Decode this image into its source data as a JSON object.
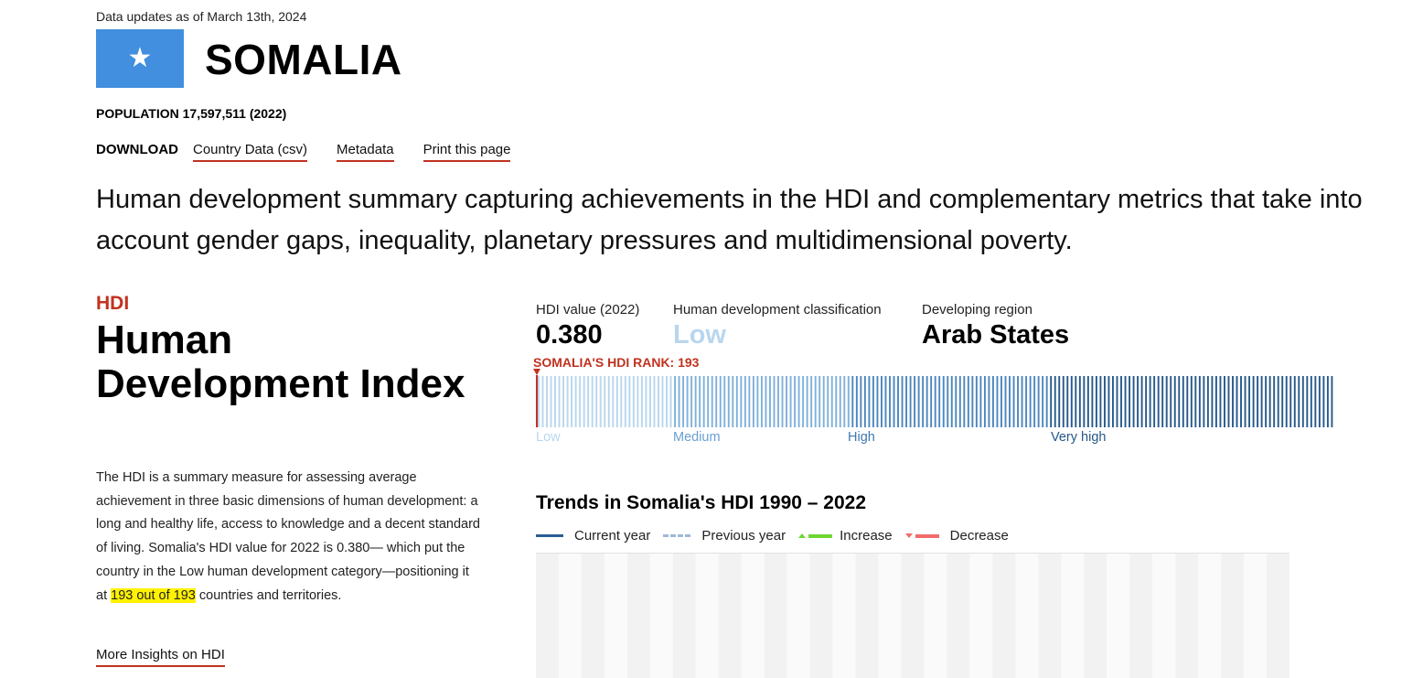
{
  "header": {
    "updated": "Data updates as of March 13th, 2024",
    "country": "SOMALIA",
    "population": "POPULATION 17,597,511 (2022)",
    "flag_icon": "star-icon",
    "flag_color": "#418fde"
  },
  "download": {
    "label": "DOWNLOAD",
    "links": [
      "Country Data (csv)",
      "Metadata",
      "Print this page"
    ]
  },
  "summary": "Human development summary capturing achievements in the HDI and complementary metrics that take into account gender gaps, inequality, planetary pressures and multidimensional poverty.",
  "hdi": {
    "tag": "HDI",
    "title": "Human Development Index",
    "desc_before": "The HDI is a summary measure for assessing average achievement in three basic dimensions of human development: a long and healthy life, access to knowledge and a decent standard of living. Somalia's HDI value for 2022 is 0.380— which put the country in the Low human development category—positioning it at ",
    "desc_highlight": "193 out of 193",
    "desc_after": " countries and territories.",
    "insights_link": "More Insights on HDI"
  },
  "metrics": {
    "value_label": "HDI value (2022)",
    "value": "0.380",
    "class_label": "Human development classification",
    "class_value": "Low",
    "region_label": "Developing region",
    "region_value": "Arab States"
  },
  "rank": {
    "label": "SOMALIA'S HDI RANK: 193",
    "rank": 193,
    "total_countries": 193,
    "categories": [
      "Low",
      "Medium",
      "High",
      "Very high"
    ],
    "category_colors": [
      "#b8d6ee",
      "#7fb0da",
      "#4d86bd",
      "#27598a"
    ]
  },
  "trend": {
    "title": "Trends in Somalia's HDI 1990 – 2022",
    "legend": {
      "current": "Current year",
      "previous": "Previous year",
      "increase": "Increase",
      "decrease": "Decrease"
    },
    "colors": {
      "current": "#2b5d94",
      "previous": "#9fb8d8",
      "increase": "#6dd633",
      "decrease": "#f26b6b"
    }
  }
}
